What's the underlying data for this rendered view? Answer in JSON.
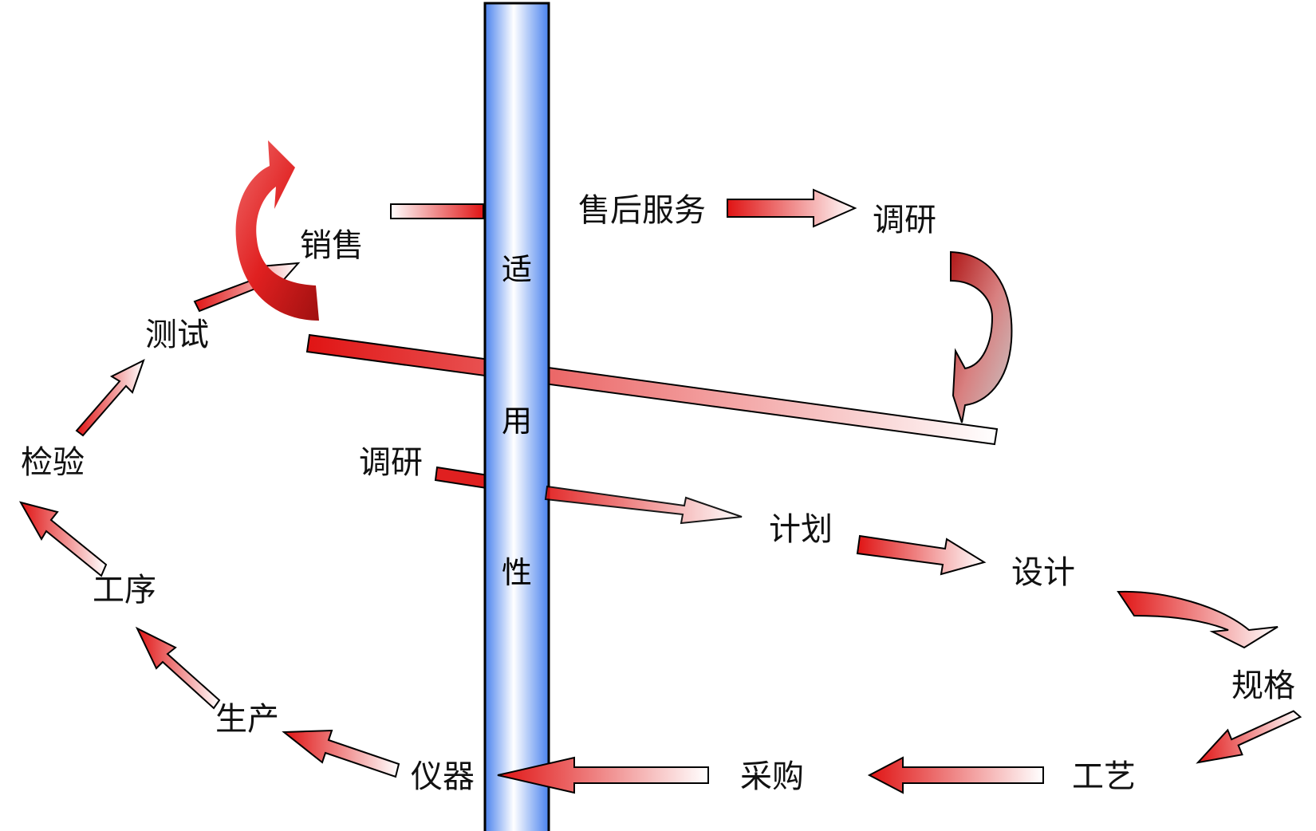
{
  "pillar": {
    "chars": [
      "适",
      "用",
      "性"
    ],
    "color": "#5b8ff0"
  },
  "stages": {
    "after_sales": "售后服务",
    "research_top": "调研",
    "research_mid": "调研",
    "plan": "计划",
    "design": "设计",
    "spec": "规格",
    "process": "工艺",
    "purchase": "采购",
    "instrument": "仪器",
    "production": "生产",
    "procedure": "工序",
    "inspection": "检验",
    "testing": "测试",
    "sales": "销售"
  },
  "colors": {
    "arrow_red": "#e01010",
    "arrow_outline": "#000000"
  }
}
